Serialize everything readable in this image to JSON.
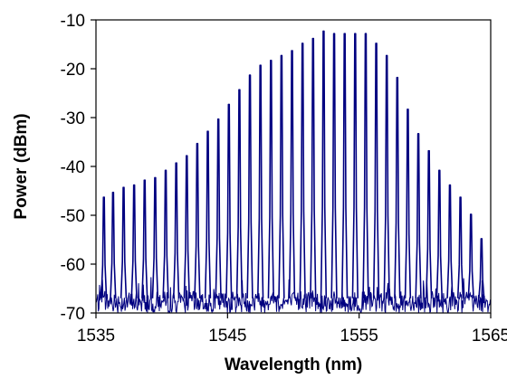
{
  "chart_data": {
    "type": "line",
    "title": "",
    "xlabel": "Wavelength (nm)",
    "ylabel": "Power (dBm)",
    "xlim": [
      1535,
      1565
    ],
    "ylim": [
      -70,
      -10
    ],
    "x_ticks": [
      1535,
      1545,
      1555,
      1565
    ],
    "y_ticks": [
      -10,
      -20,
      -30,
      -40,
      -50,
      -60,
      -70
    ],
    "grid": false,
    "legend": "none",
    "line_color": "#000080",
    "noise_floor_dBm": [
      -70,
      -62
    ],
    "series": [
      {
        "name": "",
        "peaks": [
          {
            "wavelength_nm": 1535.6,
            "power_dBm": -47.5
          },
          {
            "wavelength_nm": 1536.3,
            "power_dBm": -46.5
          },
          {
            "wavelength_nm": 1537.1,
            "power_dBm": -45.5
          },
          {
            "wavelength_nm": 1537.9,
            "power_dBm": -45.0
          },
          {
            "wavelength_nm": 1538.7,
            "power_dBm": -44.0
          },
          {
            "wavelength_nm": 1539.5,
            "power_dBm": -43.5
          },
          {
            "wavelength_nm": 1540.3,
            "power_dBm": -42.0
          },
          {
            "wavelength_nm": 1541.1,
            "power_dBm": -40.5
          },
          {
            "wavelength_nm": 1541.9,
            "power_dBm": -39.0
          },
          {
            "wavelength_nm": 1542.7,
            "power_dBm": -36.5
          },
          {
            "wavelength_nm": 1543.5,
            "power_dBm": -34.0
          },
          {
            "wavelength_nm": 1544.3,
            "power_dBm": -31.5
          },
          {
            "wavelength_nm": 1545.1,
            "power_dBm": -28.5
          },
          {
            "wavelength_nm": 1545.9,
            "power_dBm": -25.5
          },
          {
            "wavelength_nm": 1546.7,
            "power_dBm": -22.5
          },
          {
            "wavelength_nm": 1547.5,
            "power_dBm": -20.5
          },
          {
            "wavelength_nm": 1548.3,
            "power_dBm": -19.5
          },
          {
            "wavelength_nm": 1549.1,
            "power_dBm": -18.5
          },
          {
            "wavelength_nm": 1549.9,
            "power_dBm": -17.5
          },
          {
            "wavelength_nm": 1550.7,
            "power_dBm": -16.0
          },
          {
            "wavelength_nm": 1551.5,
            "power_dBm": -15.0
          },
          {
            "wavelength_nm": 1552.3,
            "power_dBm": -13.5
          },
          {
            "wavelength_nm": 1553.1,
            "power_dBm": -14.0
          },
          {
            "wavelength_nm": 1553.9,
            "power_dBm": -14.0
          },
          {
            "wavelength_nm": 1554.7,
            "power_dBm": -14.0
          },
          {
            "wavelength_nm": 1555.5,
            "power_dBm": -14.0
          },
          {
            "wavelength_nm": 1556.3,
            "power_dBm": -16.0
          },
          {
            "wavelength_nm": 1557.1,
            "power_dBm": -18.5
          },
          {
            "wavelength_nm": 1557.9,
            "power_dBm": -23.0
          },
          {
            "wavelength_nm": 1558.7,
            "power_dBm": -29.5
          },
          {
            "wavelength_nm": 1559.5,
            "power_dBm": -34.5
          },
          {
            "wavelength_nm": 1560.3,
            "power_dBm": -38.0
          },
          {
            "wavelength_nm": 1561.1,
            "power_dBm": -42.0
          },
          {
            "wavelength_nm": 1561.9,
            "power_dBm": -45.0
          },
          {
            "wavelength_nm": 1562.7,
            "power_dBm": -47.5
          },
          {
            "wavelength_nm": 1563.5,
            "power_dBm": -51.0
          },
          {
            "wavelength_nm": 1564.3,
            "power_dBm": -56.0
          }
        ]
      }
    ]
  }
}
